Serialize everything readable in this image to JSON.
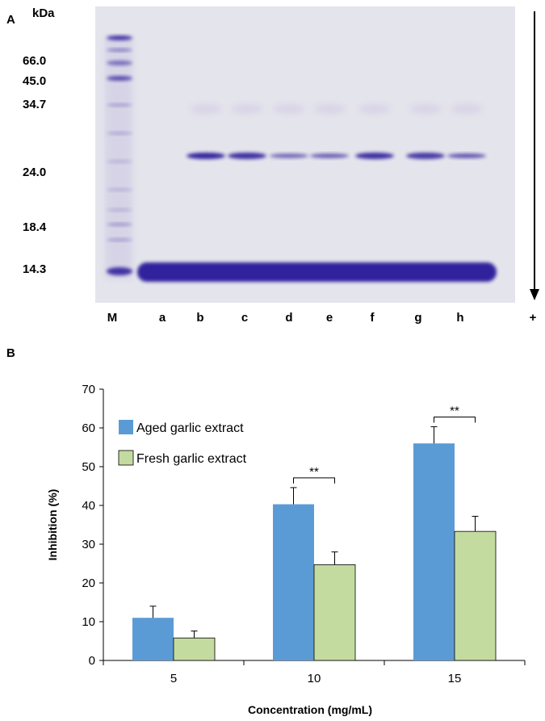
{
  "panel_a": {
    "label": "A",
    "unit": "kDa",
    "mw_markers": [
      "66.0",
      "45.0",
      "34.7",
      "24.0",
      "18.4",
      "14.3"
    ],
    "lanes": [
      "M",
      "a",
      "b",
      "c",
      "d",
      "e",
      "f",
      "g",
      "h"
    ],
    "direction_label": "+",
    "band_color": "#2a1a9a"
  },
  "panel_b": {
    "label": "B"
  },
  "chart_data": {
    "type": "bar",
    "categories": [
      "5",
      "10",
      "15"
    ],
    "series": [
      {
        "name": "Aged garlic extract",
        "values": [
          11,
          40.3,
          56
        ],
        "errors": [
          3,
          4.3,
          4.3
        ],
        "color": "#5b9bd5"
      },
      {
        "name": "Fresh garlic extract",
        "values": [
          5.8,
          24.7,
          33.3
        ],
        "errors": [
          1.8,
          3.3,
          3.9
        ],
        "color": "#c4dba0"
      }
    ],
    "xlabel": "Concentration (mg/mL)",
    "ylabel": "Inhibition (%)",
    "ylim": [
      0,
      70
    ],
    "yticks": [
      0,
      10,
      20,
      30,
      40,
      50,
      60,
      70
    ],
    "significance": [
      {
        "category": "10",
        "label": "**"
      },
      {
        "category": "15",
        "label": "**"
      }
    ],
    "legend_position": "top-left",
    "grid": false
  }
}
